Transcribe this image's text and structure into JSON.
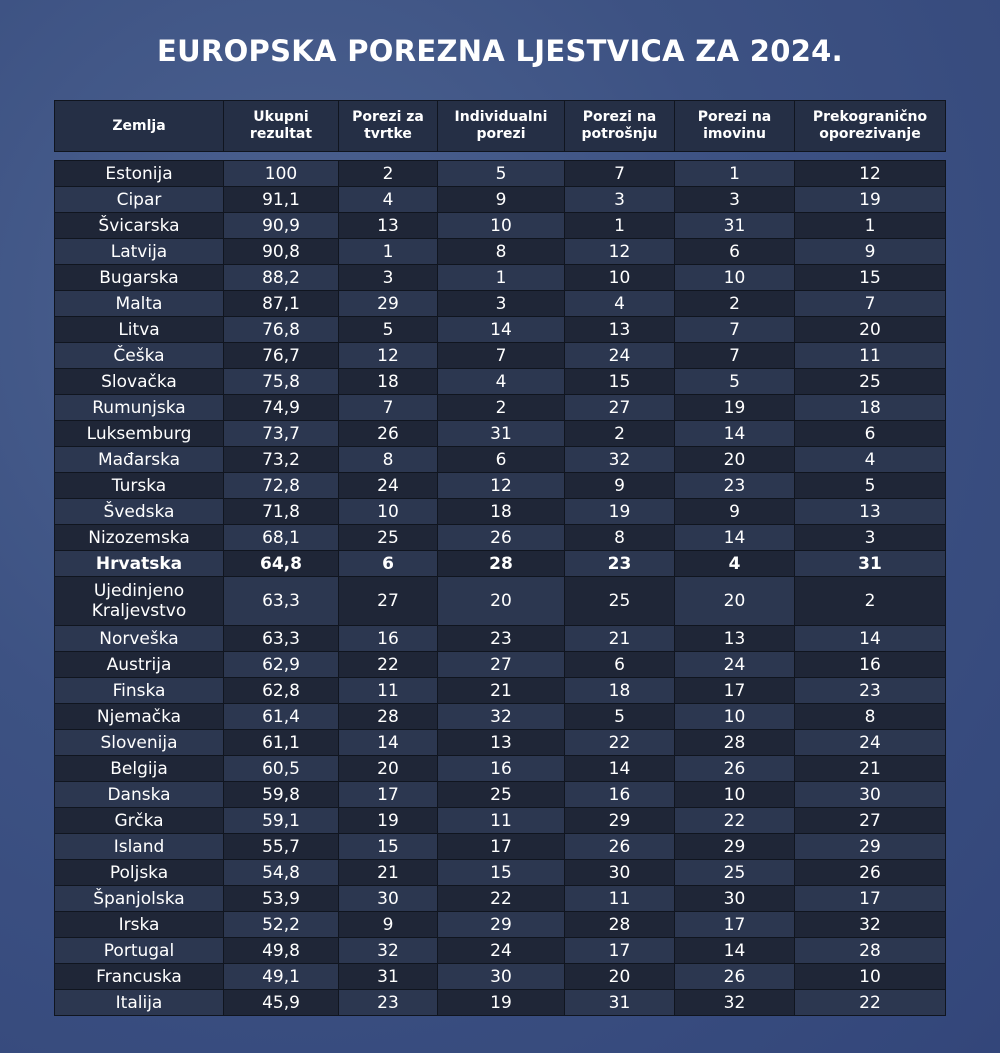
{
  "title": "EUROPSKA POREZNA LJESTVICA ZA 2024.",
  "chart_data": {
    "type": "table",
    "title": "EUROPSKA POREZNA LJESTVICA ZA 2024.",
    "columns": [
      "Zemlja",
      "Ukupni rezultat",
      "Porezi za tvrtke",
      "Individualni porezi",
      "Porezi na potrošnju",
      "Porezi na imovinu",
      "Prekogranično oporezivanje"
    ],
    "highlight_row": "Hrvatska",
    "rows": [
      [
        "Estonija",
        "100",
        "2",
        "5",
        "7",
        "1",
        "12"
      ],
      [
        "Cipar",
        "91,1",
        "4",
        "9",
        "3",
        "3",
        "19"
      ],
      [
        "Švicarska",
        "90,9",
        "13",
        "10",
        "1",
        "31",
        "1"
      ],
      [
        "Latvija",
        "90,8",
        "1",
        "8",
        "12",
        "6",
        "9"
      ],
      [
        "Bugarska",
        "88,2",
        "3",
        "1",
        "10",
        "10",
        "15"
      ],
      [
        "Malta",
        "87,1",
        "29",
        "3",
        "4",
        "2",
        "7"
      ],
      [
        "Litva",
        "76,8",
        "5",
        "14",
        "13",
        "7",
        "20"
      ],
      [
        "Češka",
        "76,7",
        "12",
        "7",
        "24",
        "7",
        "11"
      ],
      [
        "Slovačka",
        "75,8",
        "18",
        "4",
        "15",
        "5",
        "25"
      ],
      [
        "Rumunjska",
        "74,9",
        "7",
        "2",
        "27",
        "19",
        "18"
      ],
      [
        "Luksemburg",
        "73,7",
        "26",
        "31",
        "2",
        "14",
        "6"
      ],
      [
        "Mađarska",
        "73,2",
        "8",
        "6",
        "32",
        "20",
        "4"
      ],
      [
        "Turska",
        "72,8",
        "24",
        "12",
        "9",
        "23",
        "5"
      ],
      [
        "Švedska",
        "71,8",
        "10",
        "18",
        "19",
        "9",
        "13"
      ],
      [
        "Nizozemska",
        "68,1",
        "25",
        "26",
        "8",
        "14",
        "3"
      ],
      [
        "Hrvatska",
        "64,8",
        "6",
        "28",
        "23",
        "4",
        "31"
      ],
      [
        "Ujedinjeno Kraljevstvo",
        "63,3",
        "27",
        "20",
        "25",
        "20",
        "2"
      ],
      [
        "Norveška",
        "63,3",
        "16",
        "23",
        "21",
        "13",
        "14"
      ],
      [
        "Austrija",
        "62,9",
        "22",
        "27",
        "6",
        "24",
        "16"
      ],
      [
        "Finska",
        "62,8",
        "11",
        "21",
        "18",
        "17",
        "23"
      ],
      [
        "Njemačka",
        "61,4",
        "28",
        "32",
        "5",
        "10",
        "8"
      ],
      [
        "Slovenija",
        "61,1",
        "14",
        "13",
        "22",
        "28",
        "24"
      ],
      [
        "Belgija",
        "60,5",
        "20",
        "16",
        "14",
        "26",
        "21"
      ],
      [
        "Danska",
        "59,8",
        "17",
        "25",
        "16",
        "10",
        "30"
      ],
      [
        "Grčka",
        "59,1",
        "19",
        "11",
        "29",
        "22",
        "27"
      ],
      [
        "Island",
        "55,7",
        "15",
        "17",
        "26",
        "29",
        "29"
      ],
      [
        "Poljska",
        "54,8",
        "21",
        "15",
        "30",
        "25",
        "26"
      ],
      [
        "Španjolska",
        "53,9",
        "30",
        "22",
        "11",
        "30",
        "17"
      ],
      [
        "Irska",
        "52,2",
        "9",
        "29",
        "28",
        "17",
        "32"
      ],
      [
        "Portugal",
        "49,8",
        "32",
        "24",
        "17",
        "14",
        "28"
      ],
      [
        "Francuska",
        "49,1",
        "31",
        "30",
        "20",
        "26",
        "10"
      ],
      [
        "Italija",
        "45,9",
        "23",
        "19",
        "31",
        "32",
        "22"
      ]
    ]
  }
}
